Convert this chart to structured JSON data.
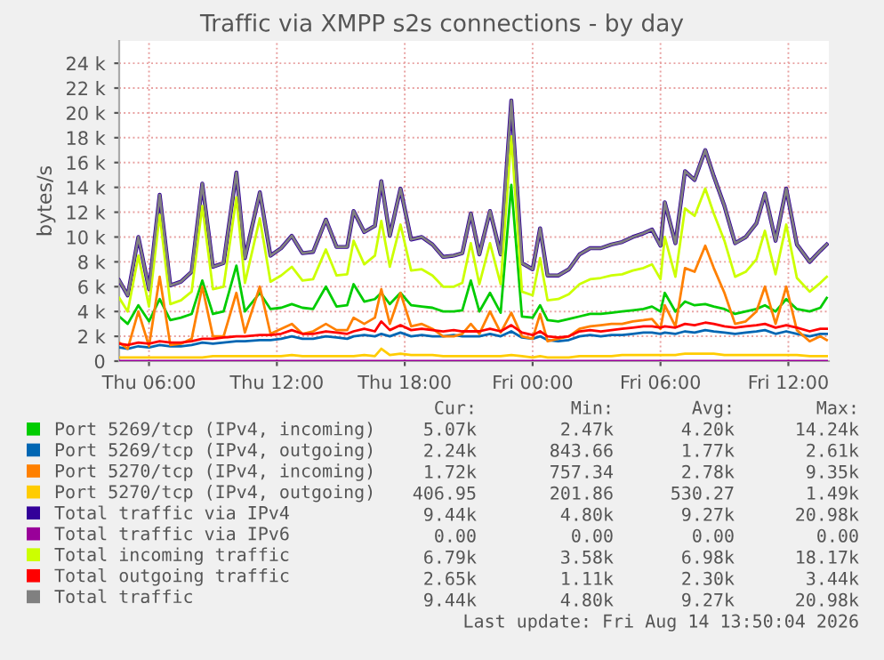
{
  "chart_data": {
    "type": "line",
    "title": "Traffic via XMPP s2s connections - by day",
    "ylabel": "bytes/s",
    "x": [
      "2026-08-13T04:36",
      "2026-08-13T05:00",
      "2026-08-13T05:30",
      "2026-08-13T06:00",
      "2026-08-13T06:30",
      "2026-08-13T07:00",
      "2026-08-13T07:30",
      "2026-08-13T08:00",
      "2026-08-13T08:30",
      "2026-08-13T09:00",
      "2026-08-13T09:30",
      "2026-08-13T10:06",
      "2026-08-13T10:30",
      "2026-08-13T11:12",
      "2026-08-13T11:42",
      "2026-08-13T12:12",
      "2026-08-13T12:42",
      "2026-08-13T13:12",
      "2026-08-13T13:42",
      "2026-08-13T14:18",
      "2026-08-13T14:48",
      "2026-08-13T15:18",
      "2026-08-13T15:36",
      "2026-08-13T16:06",
      "2026-08-13T16:36",
      "2026-08-13T16:54",
      "2026-08-13T17:18",
      "2026-08-13T17:48",
      "2026-08-13T18:18",
      "2026-08-13T18:48",
      "2026-08-13T19:18",
      "2026-08-13T19:48",
      "2026-08-13T20:18",
      "2026-08-13T20:42",
      "2026-08-13T21:06",
      "2026-08-13T21:30",
      "2026-08-13T22:00",
      "2026-08-13T22:30",
      "2026-08-13T23:00",
      "2026-08-13T23:30",
      "2026-08-14T00:00",
      "2026-08-14T00:21",
      "2026-08-14T00:42",
      "2026-08-14T01:12",
      "2026-08-14T01:42",
      "2026-08-14T02:12",
      "2026-08-14T02:42",
      "2026-08-14T03:12",
      "2026-08-14T03:42",
      "2026-08-14T04:12",
      "2026-08-14T04:42",
      "2026-08-14T05:12",
      "2026-08-14T05:36",
      "2026-08-14T06:00",
      "2026-08-14T06:12",
      "2026-08-14T06:42",
      "2026-08-14T07:09",
      "2026-08-14T07:36",
      "2026-08-14T08:06",
      "2026-08-14T08:30",
      "2026-08-14T09:00",
      "2026-08-14T09:30",
      "2026-08-14T10:00",
      "2026-08-14T10:30",
      "2026-08-14T10:54",
      "2026-08-14T11:24",
      "2026-08-14T11:54",
      "2026-08-14T12:24",
      "2026-08-14T13:00",
      "2026-08-14T13:30",
      "2026-08-14T13:48"
    ],
    "xlim": [
      "2026-08-13T04:36",
      "2026-08-14T13:54"
    ],
    "xticks": [
      {
        "value": "2026-08-13T06:00",
        "label": "Thu 06:00"
      },
      {
        "value": "2026-08-13T12:00",
        "label": "Thu 12:00"
      },
      {
        "value": "2026-08-13T18:00",
        "label": "Thu 18:00"
      },
      {
        "value": "2026-08-14T00:00",
        "label": "Fri 00:00"
      },
      {
        "value": "2026-08-14T06:00",
        "label": "Fri 06:00"
      },
      {
        "value": "2026-08-14T12:00",
        "label": "Fri 12:00"
      }
    ],
    "ylim": [
      0,
      25800
    ],
    "yticks": [
      0,
      {
        "value": 2000,
        "label": "2 k"
      },
      {
        "value": 4000,
        "label": "4 k"
      },
      {
        "value": 6000,
        "label": "6 k"
      },
      {
        "value": 8000,
        "label": "8 k"
      },
      {
        "value": 10000,
        "label": "10 k"
      },
      {
        "value": 12000,
        "label": "12 k"
      },
      {
        "value": 14000,
        "label": "14 k"
      },
      {
        "value": 16000,
        "label": "16 k"
      },
      {
        "value": 18000,
        "label": "18 k"
      },
      {
        "value": 20000,
        "label": "20 k"
      },
      {
        "value": 22000,
        "label": "22 k"
      },
      {
        "value": 24000,
        "label": "24 k"
      }
    ],
    "grid": true,
    "legend": "bottom",
    "series": [
      {
        "name": "Port 5269/tcp (IPv4, incoming)",
        "color": "#00cc00",
        "values": [
          3600,
          3000,
          4500,
          3200,
          5000,
          3300,
          3500,
          3800,
          6500,
          3800,
          4000,
          7700,
          4000,
          5500,
          4200,
          4300,
          4600,
          4300,
          4200,
          6000,
          4400,
          4500,
          6200,
          4800,
          5000,
          5500,
          4600,
          5500,
          4500,
          4400,
          4300,
          4000,
          4000,
          4100,
          6500,
          4000,
          5500,
          3900,
          14200,
          3600,
          3500,
          4500,
          3300,
          3200,
          3400,
          3600,
          3800,
          3800,
          3900,
          4000,
          4100,
          4200,
          4400,
          4000,
          5500,
          4000,
          4800,
          4500,
          4600,
          4400,
          4200,
          3800,
          4000,
          4200,
          4500,
          4000,
          5000,
          4200,
          4000,
          4300,
          5100
        ]
      },
      {
        "name": "Port 5269/tcp (IPv4, outgoing)",
        "color": "#0066b3",
        "values": [
          1100,
          1000,
          1200,
          1100,
          1300,
          1200,
          1200,
          1300,
          1500,
          1400,
          1500,
          1600,
          1600,
          1700,
          1700,
          1800,
          2000,
          1800,
          1800,
          2000,
          1900,
          1800,
          2000,
          2100,
          2000,
          2200,
          2000,
          2300,
          2000,
          2100,
          2000,
          2000,
          2100,
          2000,
          2000,
          2000,
          2200,
          2000,
          2400,
          1900,
          1800,
          2000,
          1700,
          1600,
          1700,
          2000,
          2100,
          2000,
          2100,
          2100,
          2200,
          2300,
          2300,
          2200,
          2300,
          2200,
          2400,
          2300,
          2500,
          2400,
          2300,
          2200,
          2300,
          2400,
          2500,
          2200,
          2400,
          2200,
          2000,
          2200,
          2200
        ]
      },
      {
        "name": "Port 5270/tcp (IPv4, incoming)",
        "color": "#ff8000",
        "values": [
          1500,
          1000,
          4000,
          1200,
          6800,
          1300,
          1400,
          1800,
          6000,
          2000,
          2000,
          5500,
          2300,
          6000,
          2200,
          2600,
          3000,
          2200,
          2400,
          3000,
          2500,
          2500,
          3500,
          3000,
          3500,
          5800,
          3000,
          5500,
          2800,
          3000,
          2600,
          2000,
          2000,
          2200,
          3000,
          2200,
          4000,
          2300,
          3900,
          2000,
          1800,
          3800,
          1600,
          1800,
          2000,
          2600,
          2800,
          2900,
          3000,
          3000,
          3200,
          3300,
          3400,
          2600,
          4500,
          2800,
          7500,
          7200,
          9300,
          7500,
          5500,
          3000,
          3200,
          4000,
          6000,
          3000,
          6000,
          2500,
          1600,
          2000,
          1700
        ]
      },
      {
        "name": "Port 5270/tcp (IPv4, outgoing)",
        "color": "#ffcc00",
        "values": [
          300,
          300,
          300,
          300,
          300,
          300,
          300,
          300,
          300,
          400,
          400,
          400,
          400,
          400,
          400,
          400,
          500,
          400,
          400,
          400,
          400,
          400,
          400,
          500,
          400,
          1000,
          500,
          600,
          500,
          500,
          500,
          400,
          400,
          400,
          400,
          400,
          400,
          400,
          500,
          400,
          300,
          400,
          300,
          300,
          300,
          400,
          400,
          400,
          400,
          500,
          500,
          500,
          500,
          500,
          500,
          500,
          600,
          600,
          600,
          600,
          500,
          500,
          500,
          500,
          500,
          500,
          500,
          500,
          400,
          400,
          400
        ]
      },
      {
        "name": "Total traffic via IPv4",
        "color": "#330099",
        "values": [
          6500,
          5300,
          10000,
          5800,
          13400,
          6100,
          6400,
          7200,
          14300,
          7600,
          7900,
          15200,
          8300,
          13600,
          8500,
          9100,
          10100,
          8700,
          8800,
          11400,
          9200,
          9200,
          12100,
          10400,
          10900,
          14500,
          10100,
          13900,
          9800,
          10000,
          9400,
          8400,
          8500,
          8700,
          11900,
          8600,
          12100,
          8600,
          21000,
          7900,
          7400,
          10700,
          6900,
          6900,
          7400,
          8600,
          9100,
          9100,
          9400,
          9600,
          10000,
          10300,
          10600,
          9300,
          12800,
          9500,
          15300,
          14600,
          17000,
          14900,
          12500,
          9500,
          10000,
          11100,
          13500,
          9700,
          13900,
          9400,
          8000,
          8900,
          9400
        ]
      },
      {
        "name": "Total traffic via IPv6",
        "color": "#990099",
        "values": [
          0,
          0,
          0,
          0,
          0,
          0,
          0,
          0,
          0,
          0,
          0,
          0,
          0,
          0,
          0,
          0,
          0,
          0,
          0,
          0,
          0,
          0,
          0,
          0,
          0,
          0,
          0,
          0,
          0,
          0,
          0,
          0,
          0,
          0,
          0,
          0,
          0,
          0,
          0,
          0,
          0,
          0,
          0,
          0,
          0,
          0,
          0,
          0,
          0,
          0,
          0,
          0,
          0,
          0,
          0,
          0,
          0,
          0,
          0,
          0,
          0,
          0,
          0,
          0,
          0,
          0,
          0,
          0,
          0,
          0,
          0
        ]
      },
      {
        "name": "Total incoming traffic",
        "color": "#ccff00",
        "values": [
          5100,
          4000,
          8500,
          4400,
          11800,
          4600,
          4900,
          5600,
          12500,
          5800,
          6000,
          13200,
          6300,
          11500,
          6400,
          6900,
          7600,
          6500,
          6600,
          9000,
          6900,
          7000,
          9700,
          7800,
          8500,
          11300,
          7600,
          11000,
          7300,
          7400,
          6900,
          6000,
          6000,
          6300,
          9500,
          6200,
          9500,
          6200,
          18100,
          5600,
          5300,
          8300,
          4900,
          5000,
          5400,
          6200,
          6600,
          6700,
          6900,
          7000,
          7300,
          7500,
          7800,
          6600,
          10000,
          6800,
          12300,
          11700,
          13900,
          11900,
          9700,
          6800,
          7200,
          8200,
          10500,
          7000,
          11000,
          6700,
          5600,
          6300,
          6800
        ]
      },
      {
        "name": "Total outgoing traffic",
        "color": "#ff0000",
        "values": [
          1400,
          1300,
          1500,
          1400,
          1600,
          1500,
          1500,
          1600,
          1800,
          1800,
          1900,
          2000,
          2000,
          2100,
          2100,
          2200,
          2500,
          2200,
          2200,
          2400,
          2300,
          2200,
          2400,
          2600,
          2400,
          3200,
          2500,
          2900,
          2500,
          2600,
          2500,
          2400,
          2500,
          2400,
          2400,
          2400,
          2600,
          2400,
          2900,
          2300,
          2100,
          2400,
          2000,
          1900,
          2000,
          2400,
          2500,
          2400,
          2500,
          2600,
          2700,
          2800,
          2800,
          2700,
          2800,
          2700,
          3000,
          2900,
          3100,
          3000,
          2800,
          2700,
          2800,
          2900,
          3000,
          2700,
          2900,
          2700,
          2400,
          2600,
          2600
        ]
      },
      {
        "name": "Total traffic",
        "color": "#808080",
        "values": [
          6500,
          5300,
          10000,
          5800,
          13400,
          6100,
          6400,
          7200,
          14300,
          7600,
          7900,
          15200,
          8300,
          13600,
          8500,
          9100,
          10100,
          8700,
          8800,
          11400,
          9200,
          9200,
          12100,
          10400,
          10900,
          14500,
          10100,
          13900,
          9800,
          10000,
          9400,
          8400,
          8500,
          8700,
          11900,
          8600,
          12100,
          8600,
          21000,
          7900,
          7400,
          10700,
          6900,
          6900,
          7400,
          8600,
          9100,
          9100,
          9400,
          9600,
          10000,
          10300,
          10600,
          9300,
          12800,
          9500,
          15300,
          14600,
          17000,
          14900,
          12500,
          9500,
          10000,
          11100,
          13500,
          9700,
          13900,
          9400,
          8000,
          8900,
          9400
        ]
      }
    ],
    "annotations": [
      "Cur:",
      "Min:",
      "Avg:",
      "Max:",
      "5.07k",
      "2.47k",
      "4.20k",
      "14.24k",
      "2.24k",
      "843.66",
      "1.77k",
      "2.61k",
      "1.72k",
      "757.34",
      "2.78k",
      "9.35k",
      "406.95",
      "201.86",
      "530.27",
      "1.49k",
      "9.44k",
      "4.80k",
      "9.27k",
      "20.98k",
      "0.00",
      "0.00",
      "0.00",
      "0.00",
      "6.79k",
      "3.58k",
      "6.98k",
      "18.17k",
      "2.65k",
      "1.11k",
      "2.30k",
      "3.44k",
      "9.44k",
      "4.80k",
      "9.27k",
      "20.98k",
      "Last update: Fri Aug 14 13:50:04 2026"
    ]
  }
}
